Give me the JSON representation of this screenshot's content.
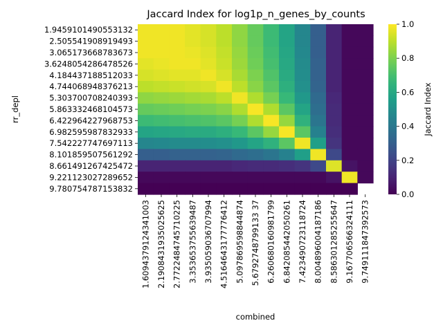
{
  "chart_data": {
    "type": "heatmap",
    "title": "Jaccard Index for log1p_n_genes_by_counts",
    "xlabel": "combined",
    "ylabel": "rr_depl",
    "colorbar_label": "Jaccard Index",
    "colormap": "viridis",
    "vmin": 0.0,
    "vmax": 1.0,
    "colorbar_ticks": [
      "0.0",
      "0.2",
      "0.4",
      "0.6",
      "0.8",
      "1.0"
    ],
    "x_categories": [
      "1.6094379124341003",
      "2.1908431935025625",
      "2.7722484745710225",
      "3.353653755639487",
      "3.935059036707994",
      "4.5164643177776412",
      "5.097869598844874",
      "5.6792748799133 37",
      "6.260680160981799",
      "6.842085442050261",
      "7.423490723118724",
      "8.004896004187186",
      "8.586301285255647",
      "9.167706566324111",
      "9.749111847392573"
    ],
    "y_categories": [
      "1.9459101490553132",
      "2.505541908919493",
      "3.065173668783673",
      "3.6248054286478526",
      "4.184437188512033",
      "4.744068948376213",
      "5.303700708240393",
      "5.863332468104573",
      "6.422964227968753",
      "6.982595987832933",
      "7.542227747697113",
      "8.101859507561292",
      "8.661491267425472",
      "9.221123027289652",
      "9.780754787153832"
    ],
    "values": [
      [
        0.98,
        0.98,
        0.98,
        0.96,
        0.94,
        0.9,
        0.83,
        0.76,
        0.68,
        0.58,
        0.46,
        0.3,
        0.1,
        0.02,
        0.02
      ],
      [
        0.98,
        0.98,
        0.98,
        0.96,
        0.94,
        0.9,
        0.83,
        0.76,
        0.68,
        0.58,
        0.46,
        0.3,
        0.1,
        0.02,
        0.02
      ],
      [
        0.98,
        0.98,
        0.98,
        0.97,
        0.95,
        0.91,
        0.84,
        0.77,
        0.69,
        0.59,
        0.47,
        0.3,
        0.1,
        0.02,
        0.02
      ],
      [
        0.96,
        0.97,
        0.98,
        0.98,
        0.96,
        0.92,
        0.85,
        0.78,
        0.7,
        0.6,
        0.48,
        0.31,
        0.1,
        0.02,
        0.02
      ],
      [
        0.94,
        0.95,
        0.96,
        0.96,
        0.98,
        0.94,
        0.87,
        0.8,
        0.72,
        0.61,
        0.49,
        0.31,
        0.1,
        0.02,
        0.02
      ],
      [
        0.9,
        0.91,
        0.92,
        0.93,
        0.94,
        0.98,
        0.9,
        0.82,
        0.74,
        0.63,
        0.5,
        0.32,
        0.1,
        0.02,
        0.02
      ],
      [
        0.83,
        0.84,
        0.85,
        0.86,
        0.87,
        0.9,
        0.98,
        0.88,
        0.79,
        0.67,
        0.53,
        0.34,
        0.11,
        0.02,
        0.02
      ],
      [
        0.76,
        0.77,
        0.78,
        0.79,
        0.8,
        0.82,
        0.88,
        0.99,
        0.88,
        0.74,
        0.58,
        0.36,
        0.12,
        0.02,
        0.02
      ],
      [
        0.68,
        0.69,
        0.7,
        0.71,
        0.72,
        0.74,
        0.79,
        0.88,
        0.99,
        0.84,
        0.64,
        0.39,
        0.12,
        0.02,
        0.02
      ],
      [
        0.58,
        0.59,
        0.6,
        0.61,
        0.61,
        0.63,
        0.67,
        0.74,
        0.84,
        0.99,
        0.74,
        0.44,
        0.13,
        0.02,
        0.02
      ],
      [
        0.46,
        0.47,
        0.48,
        0.48,
        0.49,
        0.5,
        0.53,
        0.58,
        0.64,
        0.74,
        0.98,
        0.56,
        0.15,
        0.02,
        0.02
      ],
      [
        0.3,
        0.3,
        0.31,
        0.31,
        0.31,
        0.32,
        0.34,
        0.36,
        0.39,
        0.44,
        0.56,
        0.98,
        0.22,
        0.02,
        0.02
      ],
      [
        0.1,
        0.1,
        0.1,
        0.1,
        0.1,
        0.1,
        0.11,
        0.12,
        0.12,
        0.13,
        0.15,
        0.22,
        0.95,
        0.05,
        0.02
      ],
      [
        0.02,
        0.02,
        0.02,
        0.02,
        0.02,
        0.02,
        0.02,
        0.02,
        0.02,
        0.02,
        0.02,
        0.02,
        0.05,
        0.98,
        0.02
      ],
      [
        0.0,
        0.0,
        0.0,
        0.0,
        0.0,
        0.0,
        0.0,
        0.0,
        0.0,
        0.0,
        0.0,
        0.0,
        0.0,
        0.0,
        null
      ]
    ]
  }
}
